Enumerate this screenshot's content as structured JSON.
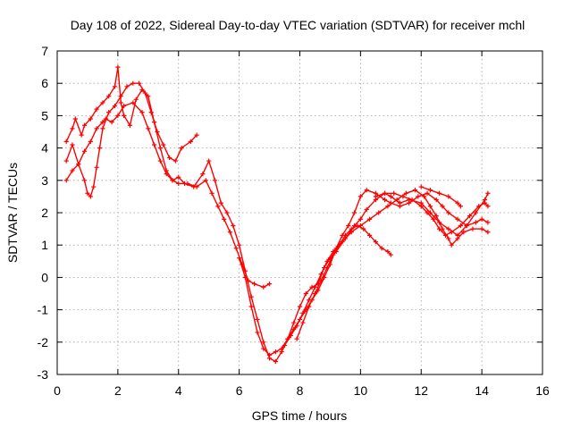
{
  "chart_data": {
    "type": "scatter",
    "title": "Day 108 of 2022, Sidereal Day-to-day VTEC variation (SDTVAR) for receiver mchl",
    "xlabel": "GPS time / hours",
    "ylabel": "SDTVAR / TECUs",
    "xlim": [
      0,
      16
    ],
    "ylim": [
      -3,
      7
    ],
    "x_ticks": [
      0,
      2,
      4,
      6,
      8,
      10,
      12,
      14,
      16
    ],
    "y_ticks": [
      -3,
      -2,
      -1,
      0,
      1,
      2,
      3,
      4,
      5,
      6,
      7
    ],
    "grid": true,
    "marker": "+",
    "color": "#ff0000",
    "series": [
      {
        "points": [
          [
            0.3,
            4.2
          ],
          [
            0.5,
            4.6
          ],
          [
            0.6,
            4.9
          ],
          [
            0.8,
            4.4
          ],
          [
            0.9,
            4.7
          ],
          [
            1.1,
            4.9
          ],
          [
            1.3,
            5.2
          ],
          [
            1.5,
            5.4
          ],
          [
            1.7,
            5.6
          ],
          [
            1.9,
            5.9
          ],
          [
            2.0,
            6.5
          ],
          [
            2.1,
            5.4
          ],
          [
            2.2,
            5.0
          ],
          [
            2.4,
            4.7
          ],
          [
            2.6,
            5.5
          ],
          [
            2.8,
            5.8
          ],
          [
            3.0,
            5.6
          ],
          [
            3.2,
            4.8
          ],
          [
            3.4,
            4.0
          ],
          [
            3.6,
            3.3
          ],
          [
            3.8,
            3.0
          ],
          [
            4.0,
            3.1
          ],
          [
            4.2,
            2.9
          ],
          [
            4.5,
            2.8
          ],
          [
            4.8,
            3.2
          ],
          [
            5.0,
            3.6
          ],
          [
            5.2,
            3.0
          ],
          [
            5.4,
            2.3
          ],
          [
            5.6,
            2.0
          ],
          [
            5.8,
            1.6
          ],
          [
            6.0,
            1.0
          ],
          [
            6.2,
            0.2
          ],
          [
            6.4,
            -0.6
          ],
          [
            6.6,
            -1.3
          ],
          [
            6.8,
            -2.0
          ],
          [
            7.0,
            -2.5
          ],
          [
            7.2,
            -2.6
          ],
          [
            7.4,
            -2.3
          ],
          [
            7.6,
            -1.9
          ],
          [
            7.8,
            -1.4
          ],
          [
            8.0,
            -0.9
          ],
          [
            8.2,
            -0.5
          ],
          [
            8.4,
            -0.3
          ],
          [
            8.6,
            -0.2
          ],
          [
            8.8,
            0.3
          ],
          [
            9.0,
            0.6
          ],
          [
            9.2,
            0.8
          ],
          [
            9.5,
            1.2
          ],
          [
            9.8,
            1.6
          ],
          [
            10.0,
            1.8
          ],
          [
            10.2,
            2.1
          ],
          [
            10.5,
            2.4
          ],
          [
            10.8,
            2.6
          ],
          [
            11.0,
            2.5
          ],
          [
            11.3,
            2.3
          ],
          [
            11.6,
            2.4
          ],
          [
            12.0,
            2.3
          ],
          [
            12.3,
            2.0
          ],
          [
            12.6,
            1.7
          ],
          [
            12.9,
            1.5
          ],
          [
            13.2,
            1.3
          ],
          [
            13.5,
            1.6
          ],
          [
            13.8,
            2.0
          ],
          [
            14.1,
            2.4
          ],
          [
            14.2,
            2.6
          ]
        ]
      },
      {
        "points": [
          [
            0.3,
            3.6
          ],
          [
            0.5,
            4.1
          ],
          [
            0.7,
            3.5
          ],
          [
            0.9,
            3.0
          ],
          [
            1.0,
            2.6
          ],
          [
            1.1,
            2.5
          ],
          [
            1.2,
            2.8
          ],
          [
            1.3,
            3.4
          ],
          [
            1.4,
            4.0
          ],
          [
            1.5,
            4.6
          ],
          [
            1.7,
            5.1
          ],
          [
            1.9,
            5.3
          ],
          [
            2.1,
            5.6
          ],
          [
            2.3,
            5.9
          ],
          [
            2.5,
            6.0
          ],
          [
            2.7,
            6.0
          ],
          [
            2.9,
            5.7
          ],
          [
            3.1,
            5.1
          ],
          [
            3.3,
            4.5
          ],
          [
            3.5,
            4.1
          ],
          [
            3.7,
            3.7
          ],
          [
            3.9,
            3.6
          ],
          [
            4.1,
            4.0
          ],
          [
            4.4,
            4.2
          ],
          [
            4.6,
            4.4
          ]
        ]
      },
      {
        "points": [
          [
            0.3,
            3.0
          ],
          [
            0.5,
            3.3
          ],
          [
            0.7,
            3.5
          ],
          [
            0.9,
            3.9
          ],
          [
            1.1,
            4.2
          ],
          [
            1.3,
            4.6
          ],
          [
            1.5,
            4.8
          ],
          [
            1.6,
            4.9
          ],
          [
            1.8,
            4.8
          ],
          [
            2.0,
            5.0
          ],
          [
            2.2,
            5.3
          ],
          [
            2.5,
            5.4
          ],
          [
            2.8,
            5.1
          ],
          [
            3.0,
            4.6
          ],
          [
            3.2,
            4.1
          ],
          [
            3.4,
            3.6
          ],
          [
            3.6,
            3.2
          ],
          [
            3.8,
            3.0
          ],
          [
            4.0,
            2.9
          ],
          [
            4.3,
            2.9
          ],
          [
            4.6,
            2.8
          ],
          [
            4.9,
            3.0
          ],
          [
            5.1,
            2.6
          ],
          [
            5.3,
            2.2
          ],
          [
            5.5,
            1.8
          ],
          [
            5.7,
            1.4
          ],
          [
            5.9,
            0.9
          ],
          [
            6.1,
            0.4
          ],
          [
            6.3,
            -0.1
          ],
          [
            6.5,
            -0.2
          ],
          [
            6.8,
            -0.3
          ],
          [
            7.0,
            -0.2
          ]
        ]
      },
      {
        "points": [
          [
            6.0,
            0.6
          ],
          [
            6.2,
            0.0
          ],
          [
            6.4,
            -0.9
          ],
          [
            6.6,
            -1.7
          ],
          [
            6.8,
            -2.2
          ],
          [
            7.0,
            -2.4
          ],
          [
            7.2,
            -2.3
          ],
          [
            7.4,
            -2.2
          ],
          [
            7.6,
            -1.9
          ],
          [
            7.8,
            -1.6
          ],
          [
            8.0,
            -1.3
          ],
          [
            8.2,
            -1.0
          ],
          [
            8.4,
            -0.7
          ],
          [
            8.6,
            -0.4
          ],
          [
            8.8,
            0.0
          ],
          [
            9.0,
            0.4
          ],
          [
            9.2,
            0.9
          ],
          [
            9.4,
            1.3
          ],
          [
            9.6,
            1.6
          ],
          [
            9.8,
            2.0
          ],
          [
            10.0,
            2.5
          ],
          [
            10.2,
            2.7
          ],
          [
            10.5,
            2.6
          ],
          [
            10.8,
            2.4
          ],
          [
            11.0,
            2.3
          ],
          [
            11.3,
            2.2
          ],
          [
            11.6,
            2.3
          ],
          [
            11.9,
            2.5
          ],
          [
            12.2,
            2.6
          ],
          [
            12.5,
            2.4
          ],
          [
            12.7,
            2.2
          ],
          [
            12.9,
            2.0
          ],
          [
            13.2,
            1.8
          ],
          [
            13.5,
            1.6
          ],
          [
            13.8,
            1.7
          ],
          [
            14.0,
            1.8
          ],
          [
            14.2,
            1.7
          ]
        ]
      },
      {
        "points": [
          [
            7.5,
            -2.1
          ],
          [
            7.7,
            -1.8
          ],
          [
            7.9,
            -1.5
          ],
          [
            8.1,
            -1.1
          ],
          [
            8.3,
            -0.7
          ],
          [
            8.5,
            -0.3
          ],
          [
            8.7,
            0.1
          ],
          [
            8.9,
            0.5
          ],
          [
            9.1,
            0.8
          ],
          [
            9.4,
            1.1
          ],
          [
            9.7,
            1.4
          ],
          [
            10.0,
            1.6
          ],
          [
            10.3,
            1.8
          ],
          [
            10.6,
            2.0
          ],
          [
            10.9,
            2.2
          ],
          [
            11.2,
            2.4
          ],
          [
            11.5,
            2.6
          ],
          [
            11.8,
            2.7
          ],
          [
            12.1,
            2.5
          ],
          [
            12.3,
            2.2
          ],
          [
            12.5,
            1.9
          ],
          [
            12.7,
            1.5
          ],
          [
            12.9,
            1.2
          ],
          [
            13.0,
            1.0
          ],
          [
            13.2,
            1.2
          ],
          [
            13.4,
            1.4
          ],
          [
            13.7,
            1.5
          ],
          [
            14.0,
            1.5
          ],
          [
            14.2,
            1.4
          ]
        ]
      },
      {
        "points": [
          [
            7.9,
            -1.9
          ],
          [
            8.1,
            -1.4
          ],
          [
            8.3,
            -0.9
          ],
          [
            8.5,
            -0.5
          ],
          [
            8.7,
            -0.1
          ],
          [
            8.9,
            0.3
          ],
          [
            9.1,
            0.7
          ],
          [
            9.3,
            1.0
          ],
          [
            9.5,
            1.3
          ],
          [
            9.7,
            1.5
          ],
          [
            9.9,
            1.6
          ],
          [
            10.1,
            1.5
          ],
          [
            10.3,
            1.3
          ],
          [
            10.5,
            1.1
          ],
          [
            10.7,
            0.9
          ],
          [
            10.9,
            0.8
          ],
          [
            11.0,
            0.7
          ]
        ]
      },
      {
        "points": [
          [
            10.5,
            2.5
          ],
          [
            10.8,
            2.6
          ],
          [
            11.1,
            2.6
          ],
          [
            11.4,
            2.5
          ],
          [
            11.7,
            2.4
          ],
          [
            12.0,
            2.2
          ],
          [
            12.2,
            2.0
          ],
          [
            12.4,
            1.8
          ],
          [
            12.6,
            1.5
          ],
          [
            12.8,
            1.3
          ],
          [
            13.0,
            1.4
          ],
          [
            13.3,
            1.6
          ],
          [
            13.6,
            1.9
          ],
          [
            13.9,
            2.2
          ],
          [
            14.1,
            2.3
          ],
          [
            14.2,
            2.2
          ]
        ]
      },
      {
        "points": [
          [
            12.0,
            2.8
          ],
          [
            12.3,
            2.7
          ],
          [
            12.6,
            2.6
          ],
          [
            12.9,
            2.5
          ],
          [
            13.2,
            2.3
          ],
          [
            13.3,
            2.2
          ]
        ]
      }
    ]
  }
}
